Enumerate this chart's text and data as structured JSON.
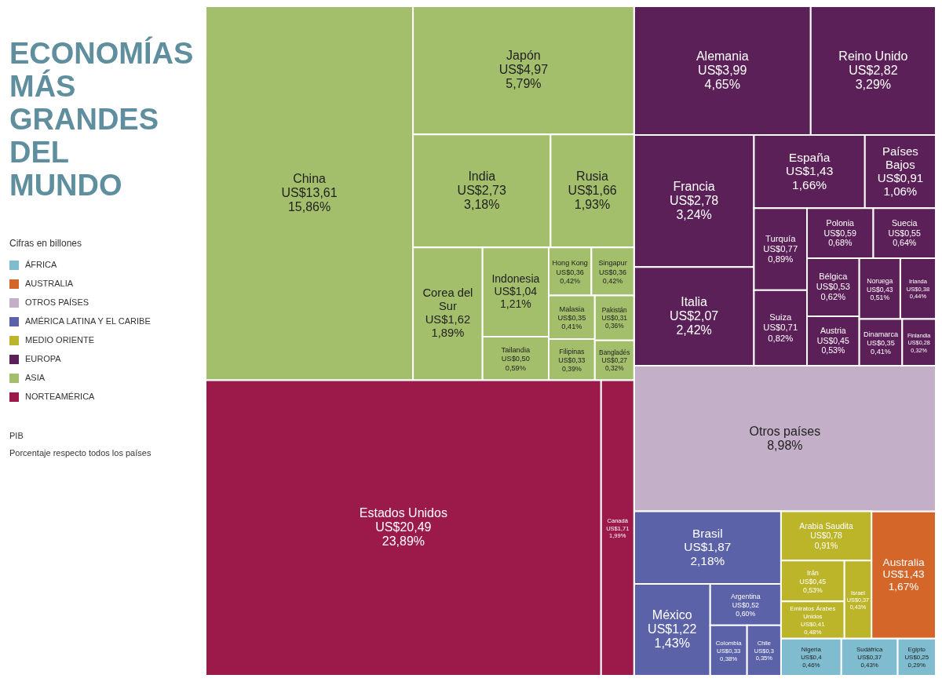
{
  "chart_data": {
    "type": "other",
    "title": "ECONOMÍAS MÁS GRANDES DEL MUNDO",
    "legend_title": "Cifras en billones",
    "legend": "left",
    "annotations": [
      "PIB",
      "Porcentaje respecto todos los países"
    ],
    "categories": [
      "Nigeria",
      "Sudáfrica",
      "Egipto",
      "Australia",
      "Otros países",
      "Brasil",
      "México",
      "Argentina",
      "Colombia",
      "Chile",
      "Arabia Saudita",
      "Irán",
      "Emiratos Árabes Unidos",
      "Israel",
      "Alemania",
      "Reino Unido",
      "Francia",
      "Italia",
      "España",
      "Países Bajos",
      "Turquía",
      "Suiza",
      "Polonia",
      "Suecia",
      "Bélgica",
      "Austria",
      "Noruega",
      "Irlanda",
      "Dinamarca",
      "Finlandia",
      "China",
      "Japón",
      "India",
      "Rusia",
      "Corea del Sur",
      "Indonesia",
      "Tailandia",
      "Hong Kong",
      "Singapur",
      "Malasia",
      "Filipinas",
      "Pakistán",
      "Bangladés",
      "Estados Unidos",
      "Canadá"
    ],
    "series": [
      {
        "name": "ÁFRICA",
        "color": "#7fbcd0",
        "values": [
          0.46,
          0.43,
          0.29,
          null,
          null,
          null,
          null,
          null,
          null,
          null,
          null,
          null,
          null,
          null,
          null,
          null,
          null,
          null,
          null,
          null,
          null,
          null,
          null,
          null,
          null,
          null,
          null,
          null,
          null,
          null,
          null,
          null,
          null,
          null,
          null,
          null,
          null,
          null,
          null,
          null,
          null,
          null,
          null,
          null,
          null
        ],
        "value_labels": [
          "US$0,4\n0,46%",
          "US$0,37\n0,43%",
          "US$0,25\n0,29%",
          null,
          null,
          null,
          null,
          null,
          null,
          null,
          null,
          null,
          null,
          null,
          null,
          null,
          null,
          null,
          null,
          null,
          null,
          null,
          null,
          null,
          null,
          null,
          null,
          null,
          null,
          null,
          null,
          null,
          null,
          null,
          null,
          null,
          null,
          null,
          null,
          null,
          null,
          null,
          null,
          null,
          null
        ]
      },
      {
        "name": "AUSTRALIA",
        "color": "#d5662a",
        "values": [
          null,
          null,
          null,
          1.67,
          null,
          null,
          null,
          null,
          null,
          null,
          null,
          null,
          null,
          null,
          null,
          null,
          null,
          null,
          null,
          null,
          null,
          null,
          null,
          null,
          null,
          null,
          null,
          null,
          null,
          null,
          null,
          null,
          null,
          null,
          null,
          null,
          null,
          null,
          null,
          null,
          null,
          null,
          null,
          null,
          null
        ],
        "value_labels": [
          null,
          null,
          null,
          "US$1,43\n1,67%",
          null,
          null,
          null,
          null,
          null,
          null,
          null,
          null,
          null,
          null,
          null,
          null,
          null,
          null,
          null,
          null,
          null,
          null,
          null,
          null,
          null,
          null,
          null,
          null,
          null,
          null,
          null,
          null,
          null,
          null,
          null,
          null,
          null,
          null,
          null,
          null,
          null,
          null,
          null,
          null,
          null
        ]
      },
      {
        "name": "OTROS PAÍSES",
        "color": "#c4afc9",
        "values": [
          null,
          null,
          null,
          null,
          8.98,
          null,
          null,
          null,
          null,
          null,
          null,
          null,
          null,
          null,
          null,
          null,
          null,
          null,
          null,
          null,
          null,
          null,
          null,
          null,
          null,
          null,
          null,
          null,
          null,
          null,
          null,
          null,
          null,
          null,
          null,
          null,
          null,
          null,
          null,
          null,
          null,
          null,
          null,
          null,
          null
        ],
        "value_labels": [
          null,
          null,
          null,
          null,
          "8,98%",
          null,
          null,
          null,
          null,
          null,
          null,
          null,
          null,
          null,
          null,
          null,
          null,
          null,
          null,
          null,
          null,
          null,
          null,
          null,
          null,
          null,
          null,
          null,
          null,
          null,
          null,
          null,
          null,
          null,
          null,
          null,
          null,
          null,
          null,
          null,
          null,
          null,
          null,
          null,
          null
        ]
      },
      {
        "name": "AMÉRICA LATINA Y EL CARIBE",
        "color": "#5b62a8",
        "values": [
          null,
          null,
          null,
          null,
          null,
          2.18,
          1.43,
          0.6,
          0.38,
          0.35,
          null,
          null,
          null,
          null,
          null,
          null,
          null,
          null,
          null,
          null,
          null,
          null,
          null,
          null,
          null,
          null,
          null,
          null,
          null,
          null,
          null,
          null,
          null,
          null,
          null,
          null,
          null,
          null,
          null,
          null,
          null,
          null,
          null,
          null,
          null
        ],
        "value_labels": [
          null,
          null,
          null,
          null,
          null,
          "US$1,87\n2,18%",
          "US$1,22\n1,43%",
          "US$0,52\n0,60%",
          "US$0,33\n0,38%",
          "US$0,3\n0,35%",
          null,
          null,
          null,
          null,
          null,
          null,
          null,
          null,
          null,
          null,
          null,
          null,
          null,
          null,
          null,
          null,
          null,
          null,
          null,
          null,
          null,
          null,
          null,
          null,
          null,
          null,
          null,
          null,
          null,
          null,
          null,
          null,
          null,
          null,
          null
        ]
      },
      {
        "name": "MEDIO ORIENTE",
        "color": "#bcb52a",
        "values": [
          null,
          null,
          null,
          null,
          null,
          null,
          null,
          null,
          null,
          null,
          0.91,
          0.53,
          0.48,
          0.43,
          null,
          null,
          null,
          null,
          null,
          null,
          null,
          null,
          null,
          null,
          null,
          null,
          null,
          null,
          null,
          null,
          null,
          null,
          null,
          null,
          null,
          null,
          null,
          null,
          null,
          null,
          null,
          null,
          null,
          null,
          null
        ],
        "value_labels": [
          null,
          null,
          null,
          null,
          null,
          null,
          null,
          null,
          null,
          null,
          "US$0,78\n0,91%",
          "US$0,45\n0,53%",
          "US$0,41\n0,48%",
          "US$0,37\n0,43%",
          null,
          null,
          null,
          null,
          null,
          null,
          null,
          null,
          null,
          null,
          null,
          null,
          null,
          null,
          null,
          null,
          null,
          null,
          null,
          null,
          null,
          null,
          null,
          null,
          null,
          null,
          null,
          null,
          null,
          null,
          null
        ]
      },
      {
        "name": "EUROPA",
        "color": "#5b2058",
        "values": [
          null,
          null,
          null,
          null,
          null,
          null,
          null,
          null,
          null,
          null,
          null,
          null,
          null,
          null,
          4.65,
          3.29,
          3.24,
          2.42,
          1.66,
          1.06,
          0.89,
          0.82,
          0.68,
          0.64,
          0.62,
          0.53,
          0.51,
          0.44,
          0.41,
          0.32,
          null,
          null,
          null,
          null,
          null,
          null,
          null,
          null,
          null,
          null,
          null,
          null,
          null,
          null,
          null
        ],
        "value_labels": [
          null,
          null,
          null,
          null,
          null,
          null,
          null,
          null,
          null,
          null,
          null,
          null,
          null,
          null,
          "US$3,99\n4,65%",
          "US$2,82\n3,29%",
          "US$2,78\n3,24%",
          "US$2,07\n2,42%",
          "US$1,43\n1,66%",
          "US$0,91\n1,06%",
          "US$0,77\n0,89%",
          "US$0,71\n0,82%",
          "US$0,59\n0,68%",
          "US$0,55\n0,64%",
          "US$0,53\n0,62%",
          "US$0,45\n0,53%",
          "US$0,43\n0,51%",
          "US$0,38\n0,44%",
          "US$0,35\n0,41%",
          "US$0,28\n0,32%",
          null,
          null,
          null,
          null,
          null,
          null,
          null,
          null,
          null,
          null,
          null,
          null,
          null,
          null,
          null
        ]
      },
      {
        "name": "ASIA",
        "color": "#a3bf6b",
        "values": [
          null,
          null,
          null,
          null,
          null,
          null,
          null,
          null,
          null,
          null,
          null,
          null,
          null,
          null,
          null,
          null,
          null,
          null,
          null,
          null,
          null,
          null,
          null,
          null,
          null,
          null,
          null,
          null,
          null,
          null,
          15.86,
          5.79,
          3.18,
          1.93,
          1.89,
          1.21,
          0.59,
          0.42,
          0.42,
          0.41,
          0.39,
          0.36,
          0.32,
          null,
          null
        ],
        "value_labels": [
          null,
          null,
          null,
          null,
          null,
          null,
          null,
          null,
          null,
          null,
          null,
          null,
          null,
          null,
          null,
          null,
          null,
          null,
          null,
          null,
          null,
          null,
          null,
          null,
          null,
          null,
          null,
          null,
          null,
          null,
          "US$13,61\n15,86%",
          "US$4,97\n5,79%",
          "US$2,73\n3,18%",
          "US$1,66\n1,93%",
          "US$1,62\n1,89%",
          "US$1,04\n1,21%",
          "US$0,50\n0,59%",
          "US$0,36\n0,42%",
          "US$0,36\n0,42%",
          "US$0,35\n0,41%",
          "US$0,33\n0,39%",
          "US$0,31\n0,36%",
          "US$0,27\n0,32%",
          null,
          null
        ]
      },
      {
        "name": "NORTEAMÉRICA",
        "color": "#9b1a4a",
        "values": [
          null,
          null,
          null,
          null,
          null,
          null,
          null,
          null,
          null,
          null,
          null,
          null,
          null,
          null,
          null,
          null,
          null,
          null,
          null,
          null,
          null,
          null,
          null,
          null,
          null,
          null,
          null,
          null,
          null,
          null,
          null,
          null,
          null,
          null,
          null,
          null,
          null,
          null,
          null,
          null,
          null,
          null,
          null,
          23.89,
          1.99
        ],
        "value_labels": [
          null,
          null,
          null,
          null,
          null,
          null,
          null,
          null,
          null,
          null,
          null,
          null,
          null,
          null,
          null,
          null,
          null,
          null,
          null,
          null,
          null,
          null,
          null,
          null,
          null,
          null,
          null,
          null,
          null,
          null,
          null,
          null,
          null,
          null,
          null,
          null,
          null,
          null,
          null,
          null,
          null,
          null,
          null,
          "US$20,49\n23,89%",
          "US$1,71\n1,99%"
        ]
      }
    ]
  }
}
